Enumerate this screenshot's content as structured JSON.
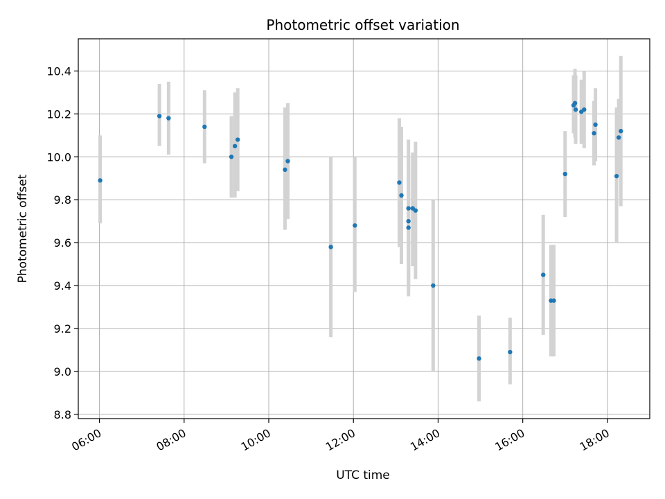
{
  "chart_data": {
    "type": "scatter",
    "title": "Photometric offset variation",
    "xlabel": "UTC time",
    "ylabel": "Photometric offset",
    "x_axis_type": "time",
    "xlim": [
      "05:30",
      "19:00"
    ],
    "ylim": [
      8.78,
      10.55
    ],
    "x_ticks": [
      "06:00",
      "08:00",
      "10:00",
      "12:00",
      "14:00",
      "16:00",
      "18:00"
    ],
    "y_ticks": [
      8.8,
      9.0,
      9.2,
      9.4,
      9.6,
      9.8,
      10.0,
      10.2,
      10.4
    ],
    "y_tick_labels": [
      "8.8",
      "9.0",
      "9.2",
      "9.4",
      "9.6",
      "9.8",
      "10.0",
      "10.2",
      "10.4"
    ],
    "grid": true,
    "legend": false,
    "colors": {
      "point": "#1f77b4",
      "errorbar": "#d3d3d3",
      "grid": "#b0b0b0"
    },
    "points": [
      {
        "x": "06:01",
        "y": 9.89,
        "err_low": 9.69,
        "err_high": 10.1
      },
      {
        "x": "07:25",
        "y": 10.19,
        "err_low": 10.05,
        "err_high": 10.34
      },
      {
        "x": "07:38",
        "y": 10.18,
        "err_low": 10.01,
        "err_high": 10.35
      },
      {
        "x": "08:29",
        "y": 10.14,
        "err_low": 9.97,
        "err_high": 10.31
      },
      {
        "x": "09:07",
        "y": 10.0,
        "err_low": 9.81,
        "err_high": 10.19
      },
      {
        "x": "09:12",
        "y": 10.05,
        "err_low": 9.81,
        "err_high": 10.3
      },
      {
        "x": "09:16",
        "y": 10.08,
        "err_low": 9.84,
        "err_high": 10.32
      },
      {
        "x": "10:23",
        "y": 9.94,
        "err_low": 9.66,
        "err_high": 10.23
      },
      {
        "x": "10:27",
        "y": 9.98,
        "err_low": 9.71,
        "err_high": 10.25
      },
      {
        "x": "11:28",
        "y": 9.58,
        "err_low": 9.16,
        "err_high": 10.0
      },
      {
        "x": "12:02",
        "y": 9.68,
        "err_low": 9.37,
        "err_high": 10.0
      },
      {
        "x": "13:05",
        "y": 9.88,
        "err_low": 9.58,
        "err_high": 10.18
      },
      {
        "x": "13:08",
        "y": 9.82,
        "err_low": 9.5,
        "err_high": 10.14
      },
      {
        "x": "13:18",
        "y": 9.76,
        "err_low": 9.35,
        "err_high": 10.08
      },
      {
        "x": "13:18",
        "y": 9.7,
        "err_low": 9.4,
        "err_high": 10.0
      },
      {
        "x": "13:18",
        "y": 9.67,
        "err_low": 9.38,
        "err_high": 9.96
      },
      {
        "x": "13:24",
        "y": 9.76,
        "err_low": 9.49,
        "err_high": 10.02
      },
      {
        "x": "13:28",
        "y": 9.75,
        "err_low": 9.43,
        "err_high": 10.07
      },
      {
        "x": "13:53",
        "y": 9.4,
        "err_low": 9.0,
        "err_high": 9.8
      },
      {
        "x": "14:58",
        "y": 9.06,
        "err_low": 8.86,
        "err_high": 9.26
      },
      {
        "x": "15:42",
        "y": 9.09,
        "err_low": 8.94,
        "err_high": 9.25
      },
      {
        "x": "16:29",
        "y": 9.45,
        "err_low": 9.17,
        "err_high": 9.73
      },
      {
        "x": "16:40",
        "y": 9.33,
        "err_low": 9.07,
        "err_high": 9.59
      },
      {
        "x": "16:44",
        "y": 9.33,
        "err_low": 9.07,
        "err_high": 9.59
      },
      {
        "x": "17:00",
        "y": 9.92,
        "err_low": 9.72,
        "err_high": 10.12
      },
      {
        "x": "17:12",
        "y": 10.24,
        "err_low": 10.11,
        "err_high": 10.38
      },
      {
        "x": "17:14",
        "y": 10.25,
        "err_low": 10.09,
        "err_high": 10.41
      },
      {
        "x": "17:15",
        "y": 10.22,
        "err_low": 10.06,
        "err_high": 10.38
      },
      {
        "x": "17:23",
        "y": 10.21,
        "err_low": 10.06,
        "err_high": 10.36
      },
      {
        "x": "17:27",
        "y": 10.22,
        "err_low": 10.04,
        "err_high": 10.4
      },
      {
        "x": "17:41",
        "y": 10.11,
        "err_low": 9.96,
        "err_high": 10.26
      },
      {
        "x": "17:43",
        "y": 10.15,
        "err_low": 9.98,
        "err_high": 10.32
      },
      {
        "x": "18:13",
        "y": 9.91,
        "err_low": 9.6,
        "err_high": 10.23
      },
      {
        "x": "18:16",
        "y": 10.09,
        "err_low": 9.91,
        "err_high": 10.27
      },
      {
        "x": "18:19",
        "y": 10.12,
        "err_low": 9.77,
        "err_high": 10.47
      }
    ]
  }
}
